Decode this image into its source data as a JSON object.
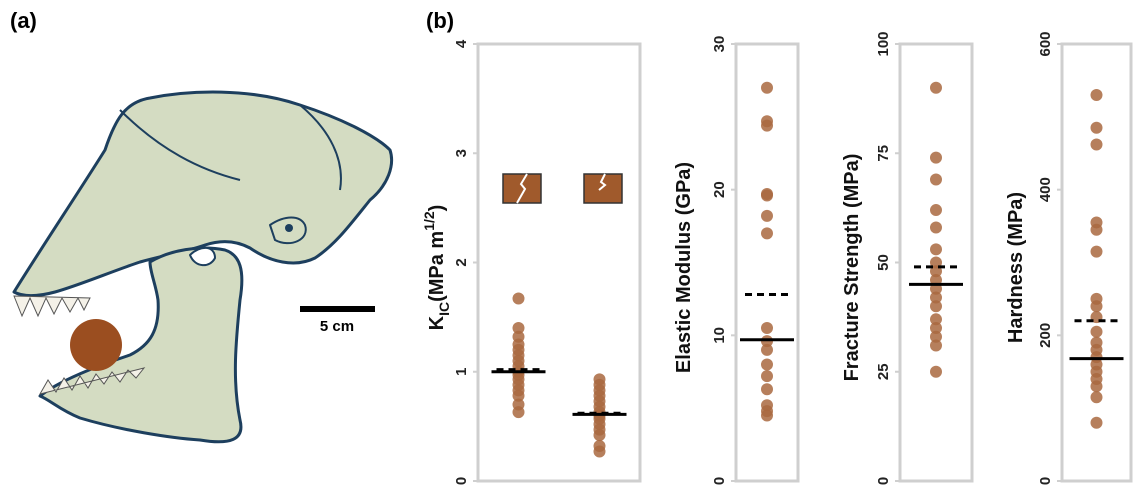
{
  "panel_labels": [
    "(a)",
    "(b)"
  ],
  "scale_bar": "5 cm",
  "chart_data": [
    {
      "type": "dot",
      "y_label": {
        "main": "K",
        "sub": "IC",
        "text": "(MPa m",
        "sup": "1/2",
        "end": ")"
      },
      "ylim": [
        0,
        4
      ],
      "yticks": [
        0,
        1,
        2,
        3,
        4
      ],
      "point_color": "#a9693f",
      "groups": [
        {
          "values": [
            1.67,
            1.4,
            1.32,
            1.25,
            1.2,
            1.15,
            1.1,
            1.05,
            1.0,
            0.97,
            0.93,
            0.88,
            0.83,
            0.78,
            0.7,
            0.63
          ],
          "solid_line": 1.0,
          "dashed_line": 1.02
        },
        {
          "values": [
            0.93,
            0.88,
            0.83,
            0.78,
            0.73,
            0.68,
            0.63,
            0.6,
            0.57,
            0.52,
            0.47,
            0.42,
            0.32,
            0.27
          ],
          "solid_line": 0.61,
          "dashed_line": 0.62
        }
      ]
    },
    {
      "type": "dot",
      "y_label": {
        "main": "Elastic Modulus (GPa)"
      },
      "ylim": [
        0,
        30
      ],
      "yticks": [
        0,
        10,
        20,
        30
      ],
      "point_color": "#a9693f",
      "groups": [
        {
          "values": [
            27,
            24.7,
            24.4,
            19.7,
            19.6,
            18.2,
            17,
            10.5,
            9.6,
            9.0,
            8.0,
            7.2,
            6.3,
            5.2,
            4.8,
            4.5
          ],
          "solid_line": 9.7,
          "dashed_line": 12.8
        }
      ]
    },
    {
      "type": "dot",
      "y_label": {
        "main": "Fracture Strength (MPa)"
      },
      "ylim": [
        0,
        100
      ],
      "yticks": [
        0,
        25,
        50,
        75,
        100
      ],
      "point_color": "#a9693f",
      "groups": [
        {
          "values": [
            90,
            74,
            69,
            62,
            58,
            53,
            50,
            48,
            46,
            44,
            42,
            40,
            37,
            35,
            33,
            31,
            25
          ],
          "solid_line": 45,
          "dashed_line": 49
        }
      ]
    },
    {
      "type": "dot",
      "y_label": {
        "main": "Hardness (MPa)"
      },
      "ylim": [
        0,
        600
      ],
      "yticks": [
        0,
        200,
        400,
        600
      ],
      "point_color": "#a9693f",
      "groups": [
        {
          "values": [
            530,
            485,
            462,
            355,
            345,
            315,
            250,
            240,
            225,
            205,
            190,
            180,
            170,
            160,
            150,
            140,
            130,
            115,
            80
          ],
          "solid_line": 168,
          "dashed_line": 220
        }
      ]
    }
  ]
}
